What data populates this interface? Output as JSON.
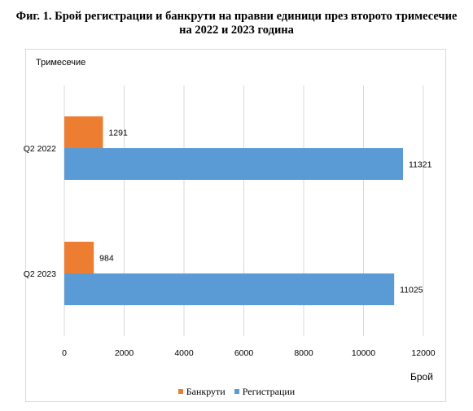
{
  "title_line1": "Фиг. 1. Брой регистрации и банкрути на правни единици през  второто тримесечие",
  "title_line2": "на 2022 и 2023 година",
  "chart_data": {
    "type": "bar",
    "orientation": "horizontal",
    "categories": [
      "Q2 2022",
      "Q2 2023"
    ],
    "series": [
      {
        "name": "Банкрути",
        "values": [
          1291,
          984
        ],
        "color": "#ed7d31"
      },
      {
        "name": "Регистрации",
        "values": [
          11321,
          11025
        ],
        "color": "#5b9bd5"
      }
    ],
    "ylabel": "Тримесечие",
    "xlabel": "Брой",
    "xlim": [
      0,
      12000
    ],
    "xticks": [
      0,
      2000,
      4000,
      6000,
      8000,
      10000,
      12000
    ],
    "grid": true,
    "legend_position": "bottom",
    "data_labels": true
  }
}
